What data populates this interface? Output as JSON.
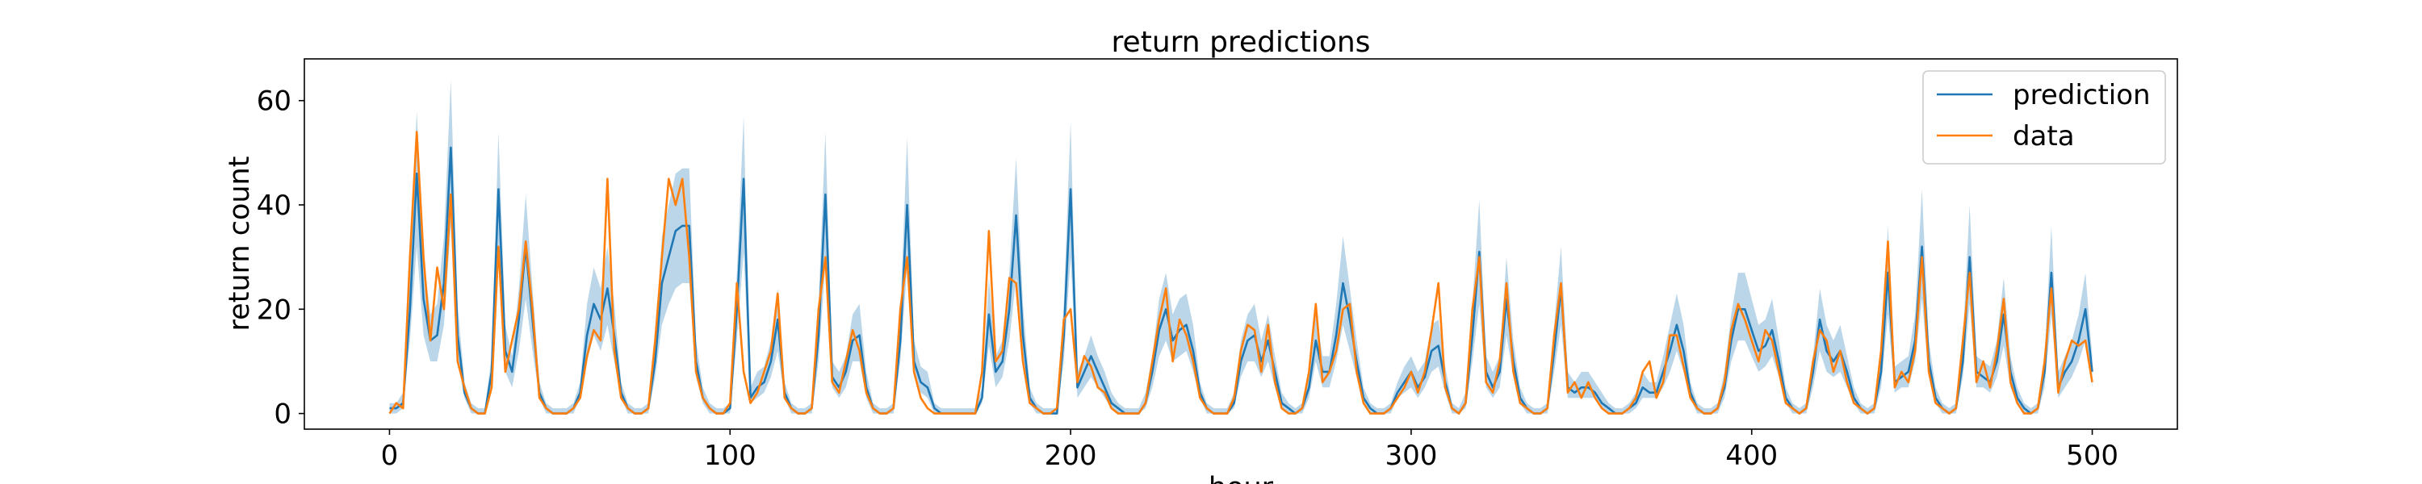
{
  "chart_data": {
    "type": "line",
    "title": "return predictions",
    "xlabel": "hour",
    "ylabel": "return count",
    "xlim": [
      -25,
      525
    ],
    "ylim": [
      -3,
      68
    ],
    "xticks": [
      0,
      100,
      200,
      300,
      400,
      500
    ],
    "yticks": [
      0,
      20,
      40,
      60
    ],
    "grid": false,
    "legend": "upper right",
    "x": [
      0,
      2,
      4,
      6,
      8,
      10,
      12,
      14,
      16,
      18,
      20,
      22,
      24,
      26,
      28,
      30,
      32,
      34,
      36,
      38,
      40,
      42,
      44,
      46,
      48,
      50,
      52,
      54,
      56,
      58,
      60,
      62,
      64,
      66,
      68,
      70,
      72,
      74,
      76,
      78,
      80,
      82,
      84,
      86,
      88,
      90,
      92,
      94,
      96,
      98,
      100,
      102,
      104,
      106,
      108,
      110,
      112,
      114,
      116,
      118,
      120,
      122,
      124,
      126,
      128,
      130,
      132,
      134,
      136,
      138,
      140,
      142,
      144,
      146,
      148,
      150,
      152,
      154,
      156,
      158,
      160,
      162,
      164,
      166,
      168,
      170,
      172,
      174,
      176,
      178,
      180,
      182,
      184,
      186,
      188,
      190,
      192,
      194,
      196,
      198,
      200,
      202,
      204,
      206,
      208,
      210,
      212,
      214,
      216,
      218,
      220,
      222,
      224,
      226,
      228,
      230,
      232,
      234,
      236,
      238,
      240,
      242,
      244,
      246,
      248,
      250,
      252,
      254,
      256,
      258,
      260,
      262,
      264,
      266,
      268,
      270,
      272,
      274,
      276,
      278,
      280,
      282,
      284,
      286,
      288,
      290,
      292,
      294,
      296,
      298,
      300,
      302,
      304,
      306,
      308,
      310,
      312,
      314,
      316,
      318,
      320,
      322,
      324,
      326,
      328,
      330,
      332,
      334,
      336,
      338,
      340,
      342,
      344,
      346,
      348,
      350,
      352,
      354,
      356,
      358,
      360,
      362,
      364,
      366,
      368,
      370,
      372,
      374,
      376,
      378,
      380,
      382,
      384,
      386,
      388,
      390,
      392,
      394,
      396,
      398,
      400,
      402,
      404,
      406,
      408,
      410,
      412,
      414,
      416,
      418,
      420,
      422,
      424,
      426,
      428,
      430,
      432,
      434,
      436,
      438,
      440,
      442,
      444,
      446,
      448,
      450,
      452,
      454,
      456,
      458,
      460,
      462,
      464,
      466,
      468,
      470,
      472,
      474,
      476,
      478,
      480,
      482,
      484,
      486,
      488,
      490,
      492,
      494,
      496,
      498,
      500
    ],
    "series": [
      {
        "name": "prediction",
        "color": "#1f77b4",
        "band_color": "#1f77b4",
        "values": [
          1,
          1,
          2,
          20,
          46,
          22,
          14,
          15,
          25,
          51,
          15,
          4,
          1,
          0,
          0,
          8,
          43,
          12,
          8,
          18,
          32,
          18,
          4,
          1,
          0,
          0,
          0,
          1,
          4,
          15,
          21,
          18,
          24,
          15,
          4,
          1,
          0,
          0,
          1,
          10,
          25,
          30,
          35,
          36,
          36,
          10,
          3,
          1,
          0,
          0,
          1,
          20,
          45,
          3,
          5,
          6,
          10,
          18,
          4,
          1,
          0,
          0,
          1,
          15,
          42,
          7,
          5,
          8,
          14,
          15,
          5,
          1,
          0,
          0,
          1,
          14,
          40,
          10,
          6,
          5,
          1,
          0,
          0,
          0,
          0,
          0,
          0,
          3,
          19,
          8,
          10,
          20,
          38,
          15,
          3,
          1,
          0,
          0,
          0,
          15,
          43,
          5,
          8,
          11,
          8,
          5,
          2,
          1,
          0,
          0,
          0,
          2,
          8,
          16,
          20,
          14,
          16,
          17,
          12,
          4,
          1,
          0,
          0,
          0,
          2,
          10,
          14,
          15,
          10,
          14,
          8,
          2,
          1,
          0,
          1,
          5,
          14,
          8,
          8,
          15,
          25,
          18,
          10,
          3,
          1,
          0,
          0,
          1,
          4,
          6,
          8,
          5,
          7,
          12,
          13,
          6,
          1,
          0,
          2,
          15,
          31,
          8,
          5,
          8,
          22,
          10,
          3,
          1,
          0,
          0,
          1,
          12,
          24,
          5,
          4,
          5,
          5,
          4,
          2,
          1,
          0,
          0,
          1,
          2,
          5,
          4,
          4,
          8,
          12,
          17,
          12,
          4,
          1,
          0,
          0,
          1,
          5,
          14,
          20,
          20,
          16,
          12,
          13,
          16,
          10,
          3,
          1,
          0,
          1,
          8,
          18,
          12,
          10,
          12,
          8,
          3,
          1,
          0,
          1,
          8,
          27,
          6,
          7,
          8,
          14,
          32,
          10,
          3,
          1,
          0,
          1,
          10,
          30,
          8,
          7,
          6,
          10,
          19,
          8,
          3,
          1,
          0,
          1,
          8,
          27,
          5,
          8,
          10,
          14,
          20,
          8
        ],
        "lower": [
          0,
          0,
          1,
          14,
          32,
          15,
          10,
          10,
          17,
          36,
          10,
          3,
          0,
          0,
          0,
          5,
          30,
          8,
          5,
          12,
          22,
          12,
          3,
          0,
          0,
          0,
          0,
          0,
          3,
          10,
          15,
          12,
          17,
          10,
          3,
          0,
          0,
          0,
          0,
          7,
          17,
          21,
          24,
          25,
          25,
          7,
          2,
          0,
          0,
          0,
          0,
          14,
          31,
          2,
          3,
          4,
          7,
          12,
          3,
          0,
          0,
          0,
          0,
          10,
          29,
          5,
          3,
          5,
          10,
          10,
          3,
          0,
          0,
          0,
          0,
          10,
          28,
          7,
          4,
          3,
          0,
          0,
          0,
          0,
          0,
          0,
          0,
          2,
          13,
          5,
          7,
          14,
          26,
          10,
          2,
          0,
          0,
          0,
          0,
          10,
          30,
          3,
          5,
          7,
          5,
          3,
          1,
          0,
          0,
          0,
          0,
          1,
          5,
          11,
          14,
          10,
          11,
          12,
          8,
          3,
          0,
          0,
          0,
          0,
          1,
          7,
          10,
          10,
          7,
          10,
          5,
          1,
          0,
          0,
          0,
          3,
          10,
          5,
          5,
          10,
          17,
          12,
          7,
          2,
          0,
          0,
          0,
          0,
          3,
          4,
          5,
          3,
          5,
          8,
          9,
          4,
          0,
          0,
          1,
          10,
          21,
          5,
          3,
          5,
          15,
          7,
          2,
          0,
          0,
          0,
          0,
          8,
          17,
          3,
          3,
          3,
          3,
          3,
          1,
          0,
          0,
          0,
          0,
          1,
          3,
          3,
          3,
          5,
          8,
          12,
          8,
          3,
          0,
          0,
          0,
          0,
          3,
          10,
          14,
          14,
          11,
          8,
          9,
          11,
          7,
          2,
          0,
          0,
          0,
          5,
          12,
          8,
          7,
          8,
          5,
          2,
          0,
          0,
          0,
          5,
          19,
          4,
          5,
          5,
          10,
          22,
          7,
          2,
          0,
          0,
          0,
          7,
          21,
          5,
          5,
          4,
          7,
          13,
          5,
          2,
          0,
          0,
          0,
          5,
          19,
          3,
          5,
          7,
          10,
          14,
          5
        ],
        "upper": [
          2,
          2,
          4,
          27,
          58,
          30,
          19,
          21,
          34,
          64,
          21,
          6,
          2,
          1,
          1,
          11,
          54,
          17,
          11,
          24,
          42,
          24,
          6,
          2,
          1,
          1,
          1,
          2,
          6,
          21,
          28,
          24,
          32,
          21,
          6,
          2,
          1,
          1,
          2,
          14,
          34,
          40,
          46,
          47,
          47,
          14,
          5,
          2,
          1,
          1,
          2,
          27,
          57,
          5,
          8,
          9,
          14,
          24,
          6,
          2,
          1,
          1,
          2,
          21,
          54,
          10,
          8,
          11,
          19,
          21,
          8,
          2,
          1,
          1,
          2,
          19,
          53,
          14,
          9,
          8,
          2,
          1,
          1,
          1,
          1,
          1,
          1,
          5,
          26,
          11,
          14,
          27,
          49,
          21,
          5,
          2,
          1,
          1,
          1,
          21,
          56,
          8,
          11,
          15,
          11,
          8,
          4,
          2,
          1,
          1,
          1,
          4,
          11,
          22,
          27,
          19,
          22,
          23,
          17,
          6,
          2,
          1,
          1,
          1,
          4,
          14,
          19,
          21,
          14,
          19,
          11,
          4,
          2,
          1,
          2,
          8,
          19,
          11,
          11,
          21,
          34,
          24,
          14,
          5,
          2,
          1,
          1,
          2,
          6,
          9,
          11,
          8,
          10,
          17,
          18,
          9,
          2,
          1,
          4,
          21,
          41,
          11,
          8,
          11,
          30,
          14,
          5,
          2,
          1,
          1,
          2,
          17,
          32,
          8,
          6,
          8,
          8,
          6,
          4,
          2,
          1,
          1,
          2,
          4,
          8,
          6,
          6,
          11,
          17,
          23,
          17,
          6,
          2,
          1,
          1,
          2,
          8,
          19,
          27,
          27,
          22,
          17,
          18,
          22,
          14,
          5,
          2,
          1,
          2,
          11,
          24,
          17,
          14,
          17,
          11,
          5,
          2,
          1,
          2,
          11,
          36,
          9,
          10,
          11,
          19,
          43,
          14,
          5,
          2,
          1,
          2,
          14,
          40,
          11,
          10,
          9,
          14,
          26,
          11,
          5,
          2,
          1,
          2,
          11,
          36,
          8,
          11,
          14,
          19,
          27,
          11
        ]
      },
      {
        "name": "data",
        "color": "#ff7f0e",
        "values": [
          0,
          2,
          1,
          30,
          54,
          30,
          14,
          28,
          20,
          42,
          10,
          5,
          1,
          0,
          0,
          5,
          32,
          8,
          14,
          20,
          33,
          20,
          3,
          1,
          0,
          0,
          0,
          1,
          3,
          11,
          16,
          14,
          45,
          12,
          3,
          1,
          0,
          0,
          1,
          14,
          30,
          45,
          40,
          45,
          30,
          8,
          3,
          1,
          0,
          0,
          2,
          25,
          8,
          2,
          4,
          8,
          12,
          23,
          3,
          1,
          0,
          0,
          1,
          20,
          30,
          6,
          4,
          10,
          16,
          12,
          4,
          1,
          0,
          0,
          1,
          20,
          30,
          8,
          3,
          1,
          0,
          0,
          0,
          0,
          0,
          0,
          0,
          8,
          35,
          10,
          12,
          26,
          25,
          10,
          2,
          1,
          0,
          0,
          1,
          18,
          20,
          6,
          11,
          9,
          5,
          4,
          1,
          0,
          0,
          0,
          0,
          2,
          10,
          18,
          24,
          10,
          18,
          15,
          10,
          3,
          1,
          0,
          0,
          0,
          3,
          12,
          17,
          16,
          8,
          17,
          6,
          1,
          0,
          0,
          1,
          8,
          21,
          6,
          8,
          12,
          20,
          21,
          8,
          2,
          0,
          0,
          0,
          1,
          3,
          5,
          8,
          4,
          8,
          16,
          25,
          5,
          1,
          0,
          2,
          20,
          30,
          6,
          4,
          10,
          25,
          8,
          2,
          1,
          0,
          0,
          1,
          15,
          25,
          4,
          6,
          3,
          6,
          3,
          1,
          0,
          0,
          0,
          1,
          3,
          8,
          10,
          3,
          6,
          15,
          15,
          9,
          3,
          1,
          0,
          0,
          1,
          6,
          16,
          21,
          18,
          14,
          10,
          16,
          14,
          8,
          2,
          1,
          0,
          1,
          10,
          16,
          14,
          8,
          12,
          6,
          2,
          1,
          0,
          1,
          12,
          33,
          5,
          8,
          6,
          12,
          30,
          8,
          2,
          1,
          0,
          1,
          14,
          27,
          6,
          10,
          5,
          12,
          22,
          6,
          2,
          0,
          0,
          1,
          10,
          24,
          4,
          10,
          14,
          13,
          14,
          6
        ]
      }
    ]
  }
}
